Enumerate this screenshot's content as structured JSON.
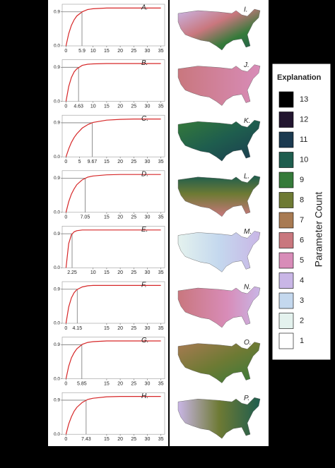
{
  "chart_data": [
    {
      "type": "line",
      "label": "A.",
      "color": "#d62728",
      "threshold": 5.9,
      "x": [
        0,
        1,
        2,
        3,
        4,
        6,
        8,
        10,
        15,
        20,
        25,
        30,
        35
      ],
      "values": [
        0,
        0.32,
        0.54,
        0.69,
        0.79,
        0.9,
        0.96,
        0.98,
        1,
        1,
        1,
        1,
        1
      ],
      "xlim": [
        -1.4,
        36.4
      ],
      "xticks": [
        0,
        10,
        15,
        20,
        25,
        30,
        35
      ],
      "ylim": [
        0,
        1.1
      ],
      "yticks": [
        {
          "value": 0,
          "label": "0.0"
        },
        0.9
      ]
    },
    {
      "type": "line",
      "label": "B.",
      "color": "#d62728",
      "threshold": 4.63,
      "x": [
        0,
        1,
        2,
        3,
        4,
        6,
        8,
        10,
        15,
        20,
        25,
        30,
        35
      ],
      "values": [
        0,
        0.39,
        0.63,
        0.78,
        0.86,
        0.95,
        0.98,
        0.99,
        1,
        1,
        1,
        1,
        1
      ],
      "xlim": [
        -1.4,
        36.4
      ],
      "xticks": [
        0,
        10,
        15,
        20,
        25,
        30,
        35
      ],
      "ylim": [
        0,
        1.1
      ],
      "yticks": [
        {
          "value": 0,
          "label": "0.0"
        },
        0.9
      ]
    },
    {
      "type": "line",
      "label": "C.",
      "color": "#d62728",
      "threshold": 9.67,
      "x": [
        0,
        1,
        2,
        3,
        4,
        6,
        8,
        10,
        15,
        20,
        25,
        30,
        35
      ],
      "values": [
        0,
        0.21,
        0.38,
        0.51,
        0.61,
        0.76,
        0.85,
        0.91,
        0.97,
        0.99,
        1,
        1,
        1
      ],
      "xlim": [
        -1.4,
        36.4
      ],
      "xticks": [
        0,
        5,
        15,
        20,
        25,
        30,
        35
      ],
      "ylim": [
        0,
        1.1
      ],
      "yticks": [
        {
          "value": 0,
          "label": "0.0"
        },
        0.9
      ]
    },
    {
      "type": "line",
      "label": "D.",
      "color": "#d62728",
      "threshold": 7.05,
      "x": [
        0,
        1,
        2,
        3,
        4,
        6,
        8,
        10,
        15,
        20,
        25,
        30,
        35
      ],
      "values": [
        0,
        0.28,
        0.48,
        0.62,
        0.73,
        0.86,
        0.93,
        0.96,
        0.99,
        1,
        1,
        1,
        1
      ],
      "xlim": [
        -1.4,
        36.4
      ],
      "xticks": [
        0,
        15,
        20,
        25,
        30,
        35
      ],
      "ylim": [
        0,
        1.1
      ],
      "yticks": [
        {
          "value": 0,
          "label": "0.0"
        },
        0.9
      ]
    },
    {
      "type": "line",
      "label": "E.",
      "color": "#d62728",
      "threshold": 2.25,
      "x": [
        0,
        1,
        2,
        3,
        4,
        6,
        8,
        10,
        15,
        20,
        25,
        30,
        35
      ],
      "values": [
        0,
        0.64,
        0.87,
        0.95,
        0.98,
        1,
        1,
        1,
        1,
        1,
        1,
        1,
        1
      ],
      "xlim": [
        -1.4,
        36.4
      ],
      "xticks": [
        10,
        15,
        20,
        25,
        30,
        35
      ],
      "ylim": [
        0,
        1.1
      ],
      "yticks": [
        {
          "value": 0,
          "label": "0.0"
        },
        0.9
      ]
    },
    {
      "type": "line",
      "label": "F.",
      "color": "#d62728",
      "threshold": 4.15,
      "x": [
        0,
        1,
        2,
        3,
        4,
        6,
        8,
        10,
        15,
        20,
        25,
        30,
        35
      ],
      "values": [
        0,
        0.43,
        0.67,
        0.81,
        0.89,
        0.96,
        0.99,
        1,
        1,
        1,
        1,
        1,
        1
      ],
      "xlim": [
        -1.4,
        36.4
      ],
      "xticks": [
        0,
        15,
        20,
        25,
        30,
        35
      ],
      "ylim": [
        0,
        1.1
      ],
      "yticks": [
        {
          "value": 0,
          "label": "0.0"
        },
        0.9
      ]
    },
    {
      "type": "line",
      "label": "G.",
      "color": "#d62728",
      "threshold": 5.85,
      "x": [
        0,
        1,
        2,
        3,
        4,
        6,
        8,
        10,
        15,
        20,
        25,
        30,
        35
      ],
      "values": [
        0,
        0.33,
        0.55,
        0.69,
        0.79,
        0.91,
        0.96,
        0.98,
        1,
        1,
        1,
        1,
        1
      ],
      "xlim": [
        -1.4,
        36.4
      ],
      "xticks": [
        0,
        15,
        20,
        25,
        30,
        35
      ],
      "ylim": [
        0,
        1.1
      ],
      "yticks": [
        {
          "value": 0,
          "label": "0.0"
        },
        0.9
      ]
    },
    {
      "type": "line",
      "label": "H.",
      "color": "#d62728",
      "threshold": 7.43,
      "x": [
        0,
        1,
        2,
        3,
        4,
        6,
        8,
        10,
        15,
        20,
        25,
        30,
        35
      ],
      "values": [
        0,
        0.27,
        0.46,
        0.61,
        0.71,
        0.84,
        0.92,
        0.95,
        0.99,
        1,
        1,
        1,
        1
      ],
      "xlim": [
        -1.4,
        36.4
      ],
      "xticks": [
        0,
        15,
        20,
        25,
        30,
        35
      ],
      "ylim": [
        0,
        1.1
      ],
      "yticks": [
        {
          "value": 0,
          "label": "0.0"
        },
        0.9
      ]
    }
  ],
  "maps": [
    {
      "label": "I."
    },
    {
      "label": "J."
    },
    {
      "label": "K."
    },
    {
      "label": "L."
    },
    {
      "label": "M."
    },
    {
      "label": "N."
    },
    {
      "label": "O."
    },
    {
      "label": "P."
    }
  ],
  "legend": {
    "title": "Explanation",
    "axis_title": "Parameter Count",
    "items": [
      {
        "label": 13,
        "color": "#000000"
      },
      {
        "label": 12,
        "color": "#22152f"
      },
      {
        "label": 11,
        "color": "#1b3a50"
      },
      {
        "label": 10,
        "color": "#1e5d4e"
      },
      {
        "label": 9,
        "color": "#357a3a"
      },
      {
        "label": 8,
        "color": "#6e7a34"
      },
      {
        "label": 7,
        "color": "#a87a52"
      },
      {
        "label": 6,
        "color": "#c9777e"
      },
      {
        "label": 5,
        "color": "#d88cb8"
      },
      {
        "label": 4,
        "color": "#c9b6e6"
      },
      {
        "label": 3,
        "color": "#c4d8ee"
      },
      {
        "label": 2,
        "color": "#e4f2ee"
      },
      {
        "label": 1,
        "color": "#ffffff"
      }
    ]
  }
}
